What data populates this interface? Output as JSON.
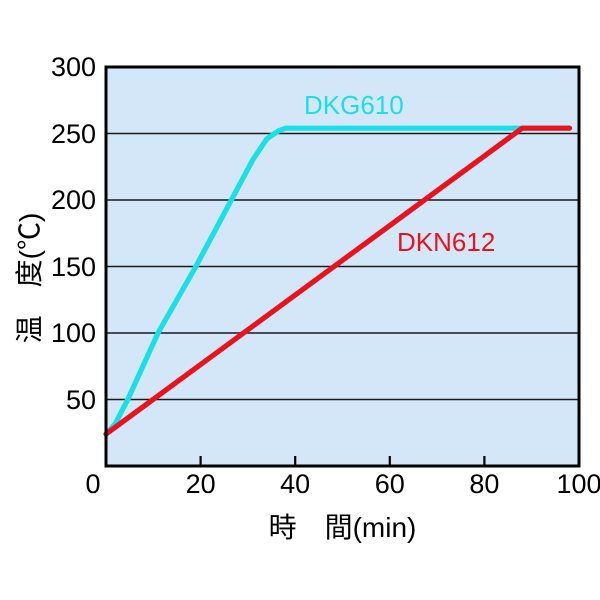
{
  "chart_data": {
    "type": "line",
    "title": "",
    "xlabel": "時　間(min)",
    "ylabel": "温　度(℃)",
    "xlim": [
      0,
      100
    ],
    "ylim": [
      0,
      300
    ],
    "x_ticks": [
      0,
      20,
      40,
      60,
      80,
      100
    ],
    "y_ticks": [
      50,
      100,
      150,
      200,
      250,
      300
    ],
    "grid": "horizontal-only",
    "legend_position": "inline-labels",
    "plot_background": "#d4e7f9",
    "grid_color": "#1a1a1a",
    "border_color": "#000000",
    "series": [
      {
        "name": "DKG610",
        "color": "#1adfe9",
        "description": "fast heat-up curve, reaches set temperature around 37 min",
        "points": [
          [
            0,
            24
          ],
          [
            2,
            32
          ],
          [
            4.6,
            50
          ],
          [
            11,
            100
          ],
          [
            19,
            150
          ],
          [
            26.5,
            200
          ],
          [
            31,
            230
          ],
          [
            34,
            246
          ],
          [
            36.5,
            252
          ],
          [
            38,
            254
          ],
          [
            98,
            254
          ]
        ]
      },
      {
        "name": "DKN612",
        "color": "#e8131d",
        "description": "slow heat-up curve, reaches set temperature around 88 min",
        "points": [
          [
            0,
            24
          ],
          [
            88,
            254
          ],
          [
            98,
            254
          ]
        ]
      }
    ]
  }
}
